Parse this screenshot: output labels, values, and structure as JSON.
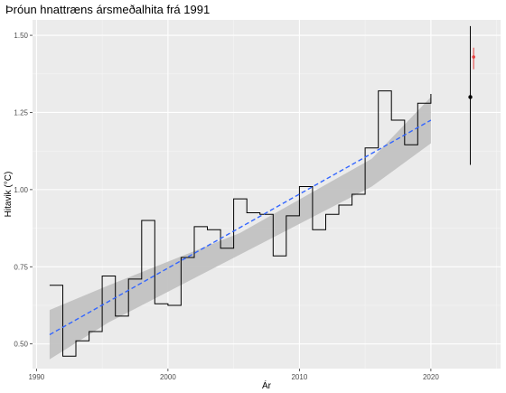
{
  "chart_data": {
    "type": "line",
    "title": "Þróun hnattræns ársmeðalhita frá 1991",
    "xlabel": "Ár",
    "ylabel": "Hitavik (°C)",
    "xlim": [
      1989.7,
      2025.3
    ],
    "ylim": [
      0.42,
      1.55
    ],
    "x_ticks": [
      1990,
      2000,
      2010,
      2020
    ],
    "x_tick_labels": [
      "1990",
      "2000",
      "2010",
      "2020"
    ],
    "y_ticks": [
      0.5,
      0.75,
      1.0,
      1.25,
      1.5
    ],
    "y_tick_labels": [
      "0.50",
      "0.75",
      "1.00",
      "1.25",
      "1.50"
    ],
    "grid": true,
    "series": [
      {
        "kind": "step",
        "color": "#000000",
        "x": [
          1991,
          1992,
          1993,
          1994,
          1995,
          1996,
          1997,
          1998,
          1999,
          2000,
          2001,
          2002,
          2003,
          2004,
          2005,
          2006,
          2007,
          2008,
          2009,
          2010,
          2011,
          2012,
          2013,
          2014,
          2015,
          2016,
          2017,
          2018,
          2019,
          2020
        ],
        "values": [
          0.69,
          0.46,
          0.51,
          0.54,
          0.72,
          0.59,
          0.71,
          0.9,
          0.63,
          0.625,
          0.78,
          0.88,
          0.87,
          0.81,
          0.97,
          0.925,
          0.92,
          0.785,
          0.915,
          1.01,
          0.87,
          0.92,
          0.95,
          0.985,
          1.135,
          1.32,
          1.225,
          1.145,
          1.28,
          1.31
        ]
      },
      {
        "kind": "trend",
        "color": "#3366ff",
        "linestyle": "dashed",
        "x": [
          1991,
          2020
        ],
        "values": [
          0.53,
          1.225
        ],
        "confidence_band": {
          "color": "#c2c2c2",
          "x": [
            1991,
            1995.5,
            2005.5,
            2015.5,
            2020
          ],
          "lower": [
            0.45,
            0.57,
            0.79,
            1.01,
            1.15
          ],
          "upper": [
            0.61,
            0.69,
            0.86,
            1.1,
            1.3
          ]
        }
      },
      {
        "kind": "pointrange",
        "color": "#000000",
        "x": 2023,
        "y": 1.3,
        "ymin": 1.08,
        "ymax": 1.53
      },
      {
        "kind": "pointrange",
        "color": "#e8413f",
        "x": 2023.25,
        "y": 1.43,
        "ymin": 1.39,
        "ymax": 1.46
      }
    ]
  }
}
